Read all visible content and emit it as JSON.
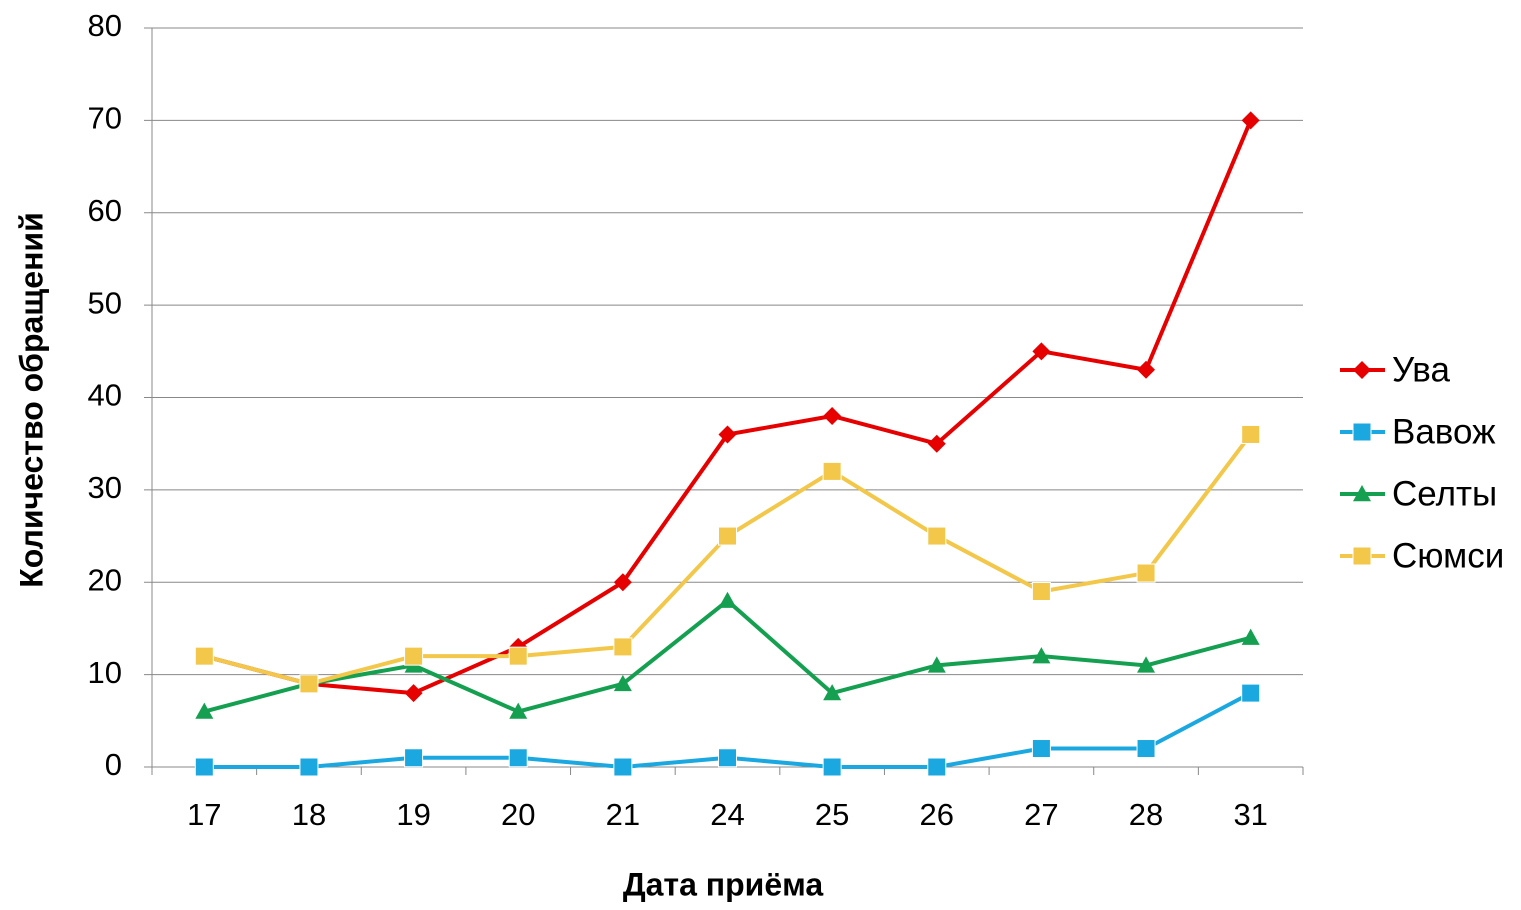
{
  "chart_data": {
    "type": "line",
    "x_label": "Дата приёма",
    "y_label": "Количество обращений",
    "categories": [
      "17",
      "18",
      "19",
      "20",
      "21",
      "24",
      "25",
      "26",
      "27",
      "28",
      "31"
    ],
    "series": [
      {
        "name": "Ува",
        "color": "#e60000",
        "marker": "diamond",
        "values": [
          12,
          9,
          8,
          13,
          20,
          36,
          38,
          35,
          45,
          43,
          70
        ]
      },
      {
        "name": "Вавож",
        "color": "#1ba8e0",
        "marker": "square",
        "values": [
          0,
          0,
          1,
          1,
          0,
          1,
          0,
          0,
          2,
          2,
          8
        ]
      },
      {
        "name": "Селты",
        "color": "#14a050",
        "marker": "triangle",
        "values": [
          6,
          9,
          11,
          6,
          9,
          18,
          8,
          11,
          12,
          11,
          14
        ]
      },
      {
        "name": "Сюмси",
        "color": "#f2c74a",
        "marker": "square",
        "values": [
          12,
          9,
          12,
          12,
          13,
          25,
          32,
          25,
          19,
          21,
          36
        ]
      }
    ],
    "ylim": [
      0,
      80
    ],
    "yticks": [
      0,
      10,
      20,
      30,
      40,
      50,
      60,
      70,
      80
    ],
    "grid": true,
    "legend": "right"
  }
}
